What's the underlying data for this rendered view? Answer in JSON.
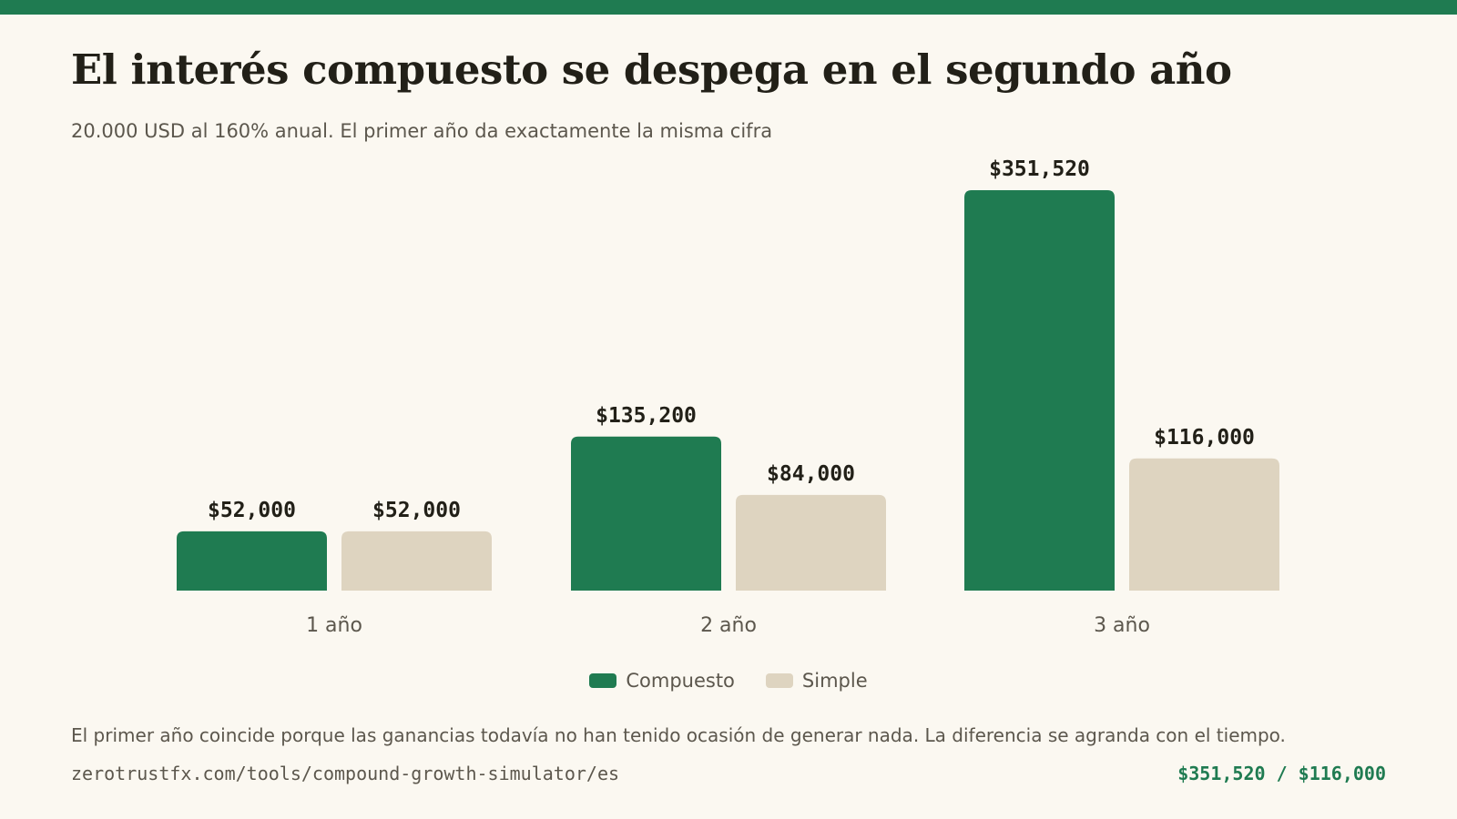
{
  "header": {
    "title": "El interés compuesto se despega en el segundo año",
    "subtitle": "20.000 USD al 160% anual. El primer año da exactamente la misma cifra"
  },
  "colors": {
    "accent": "#1f7b51",
    "compound": "#1f7b51",
    "simple": "#ded4c0",
    "background": "#fbf8f1",
    "text": "#222018",
    "muted": "#5c574d"
  },
  "chart_data": {
    "type": "bar",
    "categories": [
      "1 año",
      "2 año",
      "3 año"
    ],
    "series": [
      {
        "name": "Compuesto",
        "values": [
          52000,
          135200,
          351520
        ],
        "labels": [
          "$52,000",
          "$135,200",
          "$351,520"
        ]
      },
      {
        "name": "Simple",
        "values": [
          52000,
          84000,
          116000
        ],
        "labels": [
          "$52,000",
          "$84,000",
          "$116,000"
        ]
      }
    ],
    "ylim": [
      0,
      351520
    ],
    "grid": false,
    "legend_position": "bottom-center"
  },
  "legend": {
    "compound_label": "Compuesto",
    "simple_label": "Simple"
  },
  "footer": {
    "note": "El primer año coincide porque las ganancias todavía no han tenido ocasión de generar nada. La diferencia se agranda con el tiempo.",
    "source": "zerotrustfx.com/tools/compound-growth-simulator/es",
    "summary": "$351,520 / $116,000"
  }
}
